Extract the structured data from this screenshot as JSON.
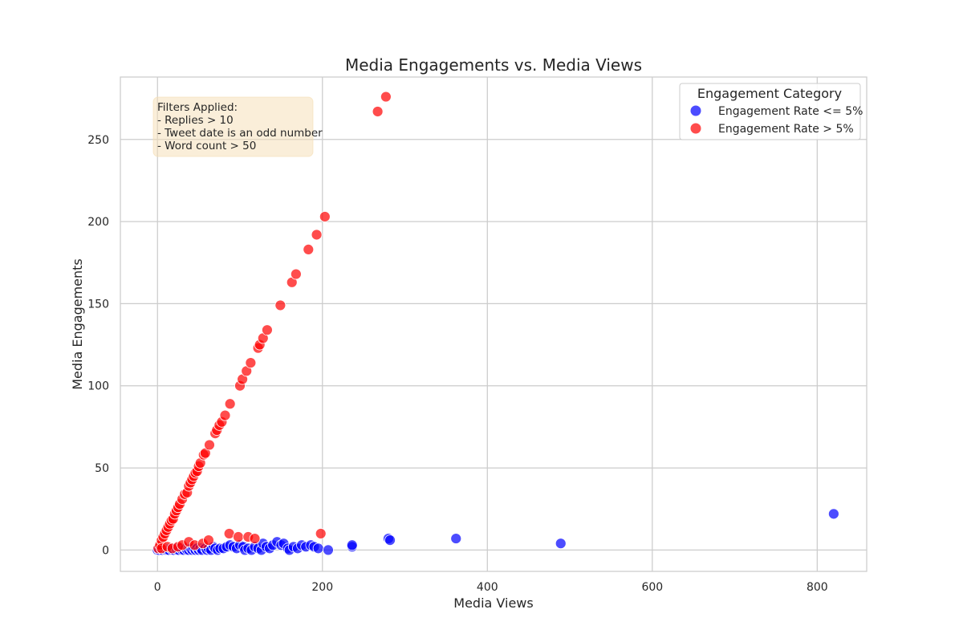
{
  "chart_data": {
    "type": "scatter",
    "title": "Media Engagements vs. Media Views",
    "xlabel": "Media Views",
    "ylabel": "Media Engagements",
    "xlim": [
      -45,
      860
    ],
    "ylim": [
      -13,
      288
    ],
    "xticks": [
      0,
      200,
      400,
      600,
      800
    ],
    "yticks": [
      0,
      50,
      100,
      150,
      200,
      250
    ],
    "grid": true,
    "legend": {
      "title": "Engagement Category",
      "placement": "top-right"
    },
    "annotation": {
      "lines": [
        "Filters Applied:",
        "- Replies > 10",
        "- Tweet date is an odd number",
        "- Word count > 50"
      ],
      "placement": "top-left"
    },
    "series": [
      {
        "name": "Engagement Rate <= 5%",
        "color": "#0000ff",
        "points": [
          [
            0,
            0
          ],
          [
            2,
            0
          ],
          [
            4,
            1
          ],
          [
            6,
            0
          ],
          [
            8,
            1
          ],
          [
            10,
            0
          ],
          [
            12,
            0
          ],
          [
            14,
            0
          ],
          [
            16,
            1
          ],
          [
            18,
            0
          ],
          [
            20,
            0
          ],
          [
            22,
            1
          ],
          [
            24,
            0
          ],
          [
            26,
            0
          ],
          [
            28,
            1
          ],
          [
            30,
            0
          ],
          [
            32,
            0
          ],
          [
            34,
            1
          ],
          [
            36,
            0
          ],
          [
            38,
            0
          ],
          [
            40,
            1
          ],
          [
            42,
            0
          ],
          [
            44,
            1
          ],
          [
            46,
            0
          ],
          [
            48,
            1
          ],
          [
            50,
            0
          ],
          [
            52,
            1
          ],
          [
            54,
            0
          ],
          [
            58,
            1
          ],
          [
            60,
            0
          ],
          [
            62,
            1
          ],
          [
            65,
            0
          ],
          [
            68,
            2
          ],
          [
            70,
            1
          ],
          [
            73,
            0
          ],
          [
            76,
            1
          ],
          [
            80,
            1
          ],
          [
            84,
            2
          ],
          [
            88,
            3
          ],
          [
            92,
            2
          ],
          [
            96,
            1
          ],
          [
            100,
            3
          ],
          [
            104,
            2
          ],
          [
            106,
            0
          ],
          [
            110,
            1
          ],
          [
            114,
            0
          ],
          [
            118,
            2
          ],
          [
            122,
            1
          ],
          [
            126,
            0
          ],
          [
            128,
            4
          ],
          [
            132,
            2
          ],
          [
            136,
            1
          ],
          [
            140,
            3
          ],
          [
            145,
            5
          ],
          [
            150,
            3
          ],
          [
            153,
            4
          ],
          [
            158,
            1
          ],
          [
            160,
            0
          ],
          [
            165,
            2
          ],
          [
            170,
            1
          ],
          [
            175,
            3
          ],
          [
            180,
            2
          ],
          [
            186,
            3
          ],
          [
            190,
            2
          ],
          [
            195,
            1
          ],
          [
            207,
            0
          ],
          [
            236,
            2
          ],
          [
            236,
            3
          ],
          [
            280,
            7
          ],
          [
            282,
            6
          ],
          [
            362,
            7
          ],
          [
            489,
            4
          ],
          [
            820,
            22
          ]
        ]
      },
      {
        "name": "Engagement Rate > 5%",
        "color": "#ff0000",
        "points": [
          [
            1,
            1
          ],
          [
            3,
            3
          ],
          [
            5,
            6
          ],
          [
            7,
            8
          ],
          [
            9,
            10
          ],
          [
            11,
            12
          ],
          [
            13,
            14
          ],
          [
            15,
            16
          ],
          [
            17,
            18
          ],
          [
            19,
            19
          ],
          [
            21,
            22
          ],
          [
            23,
            24
          ],
          [
            25,
            26
          ],
          [
            27,
            28
          ],
          [
            30,
            31
          ],
          [
            33,
            34
          ],
          [
            36,
            35
          ],
          [
            38,
            39
          ],
          [
            40,
            41
          ],
          [
            42,
            43
          ],
          [
            44,
            45
          ],
          [
            46,
            47
          ],
          [
            48,
            48
          ],
          [
            50,
            51
          ],
          [
            52,
            53
          ],
          [
            56,
            58
          ],
          [
            58,
            59
          ],
          [
            63,
            64
          ],
          [
            70,
            71
          ],
          [
            72,
            73
          ],
          [
            75,
            76
          ],
          [
            78,
            78
          ],
          [
            82,
            82
          ],
          [
            88,
            89
          ],
          [
            100,
            100
          ],
          [
            103,
            104
          ],
          [
            108,
            109
          ],
          [
            113,
            114
          ],
          [
            122,
            123
          ],
          [
            124,
            125
          ],
          [
            128,
            129
          ],
          [
            133,
            134
          ],
          [
            149,
            149
          ],
          [
            163,
            163
          ],
          [
            168,
            168
          ],
          [
            183,
            183
          ],
          [
            193,
            192
          ],
          [
            203,
            203
          ],
          [
            267,
            267
          ],
          [
            277,
            276
          ],
          [
            5,
            1
          ],
          [
            12,
            2
          ],
          [
            18,
            1
          ],
          [
            25,
            2
          ],
          [
            30,
            3
          ],
          [
            38,
            5
          ],
          [
            45,
            3
          ],
          [
            55,
            4
          ],
          [
            62,
            6
          ],
          [
            87,
            10
          ],
          [
            98,
            8
          ],
          [
            110,
            8
          ],
          [
            118,
            7
          ],
          [
            198,
            10
          ]
        ]
      }
    ]
  }
}
